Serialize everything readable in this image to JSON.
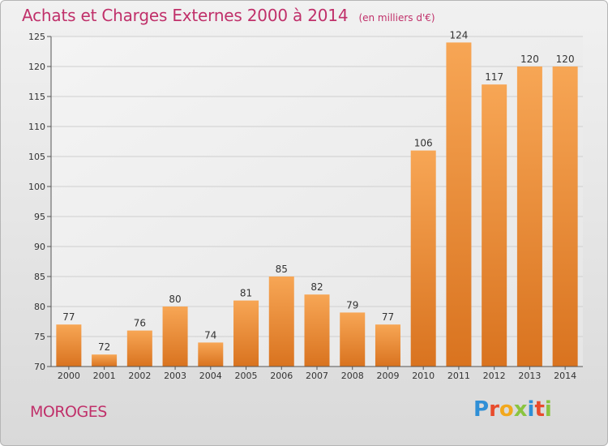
{
  "header": {
    "title": "Achats et Charges Externes 2000 à 2014",
    "subtitle": "(en milliers d'€)"
  },
  "footer": {
    "commune": "MOROGES",
    "logo_text": "Proxiti"
  },
  "colors": {
    "accent": "#c0306a",
    "bar_light": "#f7a655",
    "bar_dark": "#d9731f",
    "logo_letters": [
      "#2f8fd6",
      "#e84b2c",
      "#f2a81d",
      "#8ac43f",
      "#2f8fd6",
      "#e84b2c",
      "#8ac43f"
    ]
  },
  "chart_data": {
    "type": "bar",
    "title": "Achats et Charges Externes 2000 à 2014",
    "subtitle": "(en milliers d'€)",
    "categories": [
      "2000",
      "2001",
      "2002",
      "2003",
      "2004",
      "2005",
      "2006",
      "2007",
      "2008",
      "2009",
      "2010",
      "2011",
      "2012",
      "2013",
      "2014"
    ],
    "values": [
      77,
      72,
      76,
      80,
      74,
      81,
      85,
      82,
      79,
      77,
      106,
      124,
      117,
      120,
      120
    ],
    "ylim": [
      70,
      125
    ],
    "yticks": [
      70,
      75,
      80,
      85,
      90,
      95,
      100,
      105,
      110,
      115,
      120,
      125
    ],
    "grid": true,
    "data_labels": true
  }
}
